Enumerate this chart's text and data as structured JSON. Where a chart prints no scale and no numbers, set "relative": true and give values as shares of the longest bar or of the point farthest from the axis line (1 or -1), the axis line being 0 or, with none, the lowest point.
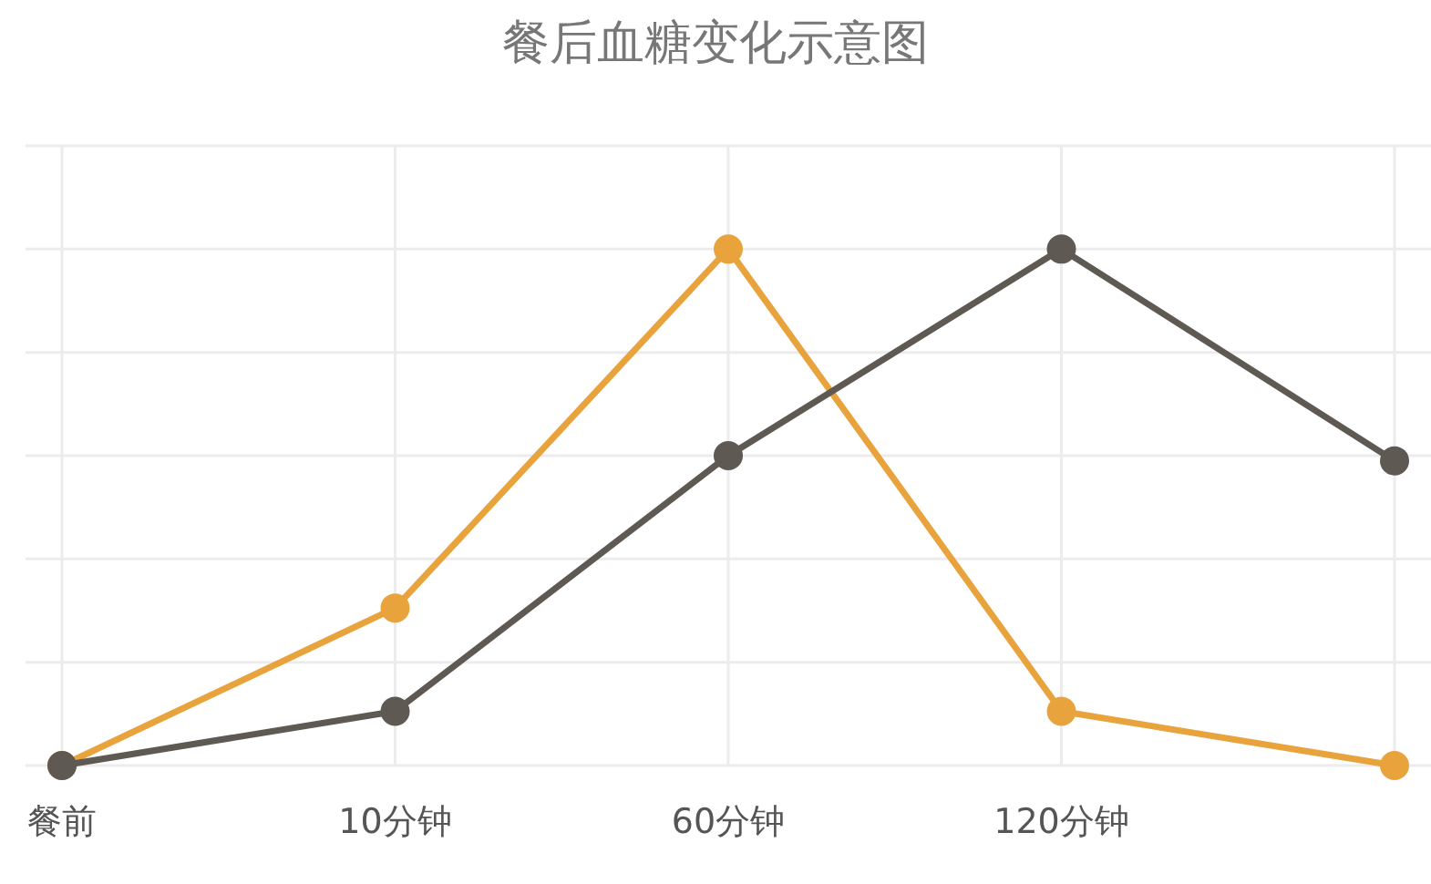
{
  "chart_data": {
    "type": "line",
    "title": "餐后血糖变化示意图",
    "categories": [
      "餐前",
      "10分钟",
      "60分钟",
      "120分钟",
      null
    ],
    "relative": true,
    "grid": true,
    "marker": "circle",
    "line_style": "solid",
    "series": [
      {
        "color": "#e8a33d",
        "values": [
          0,
          0.305,
          1,
          0.105,
          0
        ]
      },
      {
        "color": "#5f5954",
        "values": [
          0,
          0.105,
          0.6,
          1,
          0.59
        ]
      }
    ]
  }
}
